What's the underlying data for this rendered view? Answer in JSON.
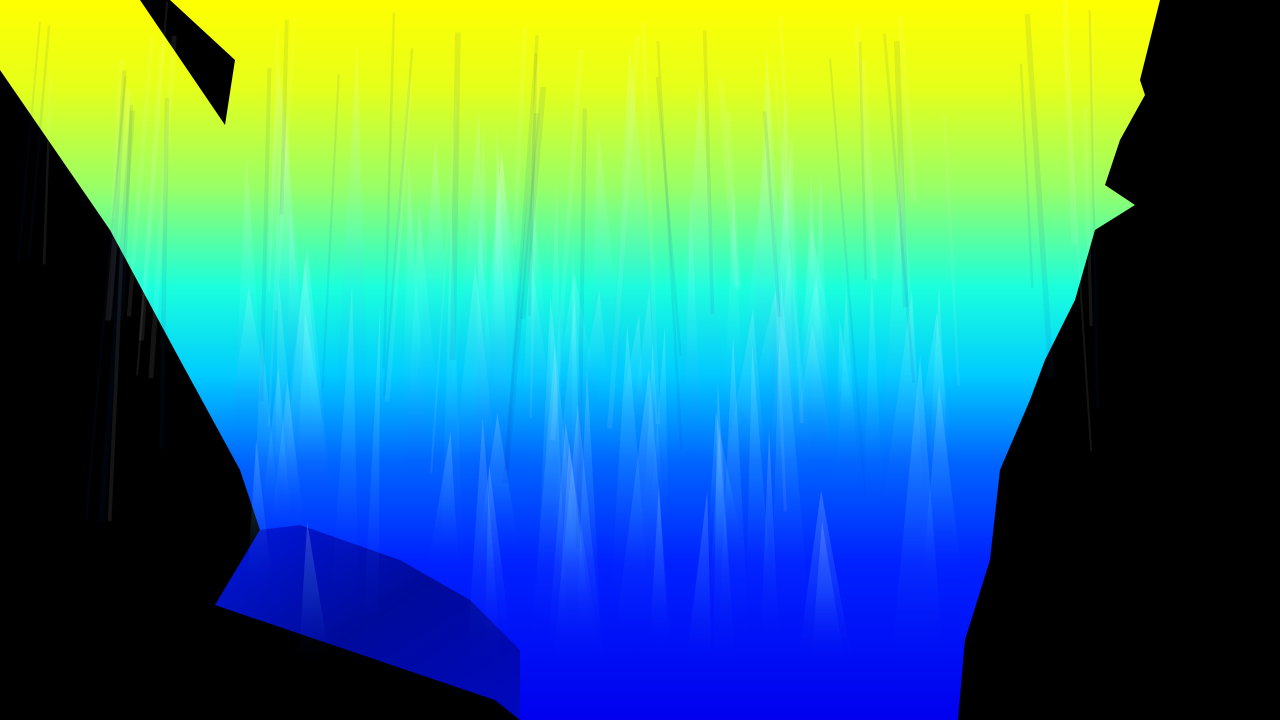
{
  "scene": {
    "background_color": "#000000",
    "colormap": [
      "#00007a",
      "#0000ff",
      "#0066ff",
      "#00e5ff",
      "#66ff99",
      "#e6ff1a",
      "#ffff00"
    ]
  }
}
